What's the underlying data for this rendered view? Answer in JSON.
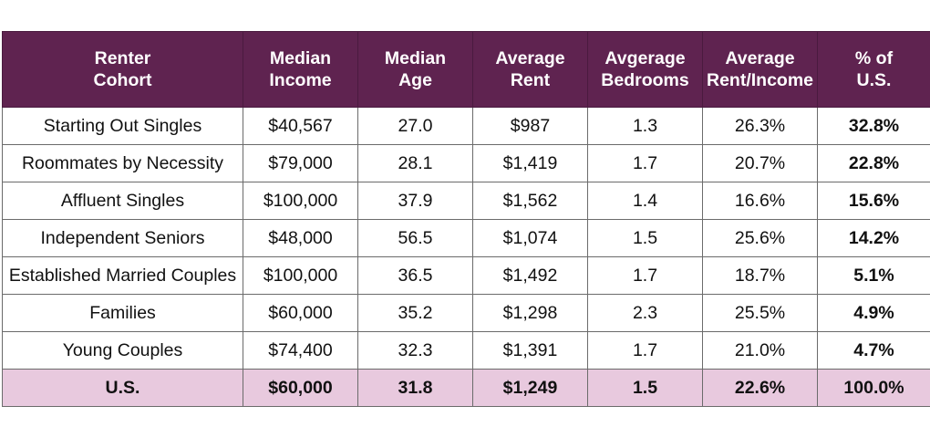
{
  "table": {
    "header_color": "#5f2350",
    "total_row_color": "#e8c9de",
    "columns": [
      {
        "line1": "Renter",
        "line2": "Cohort"
      },
      {
        "line1": "Median",
        "line2": "Income"
      },
      {
        "line1": "Median",
        "line2": "Age"
      },
      {
        "line1": "Average",
        "line2": "Rent"
      },
      {
        "line1": "Avgerage",
        "line2": "Bedrooms"
      },
      {
        "line1": "Average",
        "line2": "Rent/Income"
      },
      {
        "line1": "% of",
        "line2": "U.S."
      }
    ],
    "rows": [
      [
        "Starting Out Singles",
        "$40,567",
        "27.0",
        "$987",
        "1.3",
        "26.3%",
        "32.8%"
      ],
      [
        "Roommates by Necessity",
        "$79,000",
        "28.1",
        "$1,419",
        "1.7",
        "20.7%",
        "22.8%"
      ],
      [
        "Affluent Singles",
        "$100,000",
        "37.9",
        "$1,562",
        "1.4",
        "16.6%",
        "15.6%"
      ],
      [
        "Independent Seniors",
        "$48,000",
        "56.5",
        "$1,074",
        "1.5",
        "25.6%",
        "14.2%"
      ],
      [
        "Established Married Couples",
        "$100,000",
        "36.5",
        "$1,492",
        "1.7",
        "18.7%",
        "5.1%"
      ],
      [
        "Families",
        "$60,000",
        "35.2",
        "$1,298",
        "2.3",
        "25.5%",
        "4.9%"
      ],
      [
        "Young Couples",
        "$74,400",
        "32.3",
        "$1,391",
        "1.7",
        "21.0%",
        "4.7%"
      ]
    ],
    "total": [
      "U.S.",
      "$60,000",
      "31.8",
      "$1,249",
      "1.5",
      "22.6%",
      "100.0%"
    ]
  }
}
